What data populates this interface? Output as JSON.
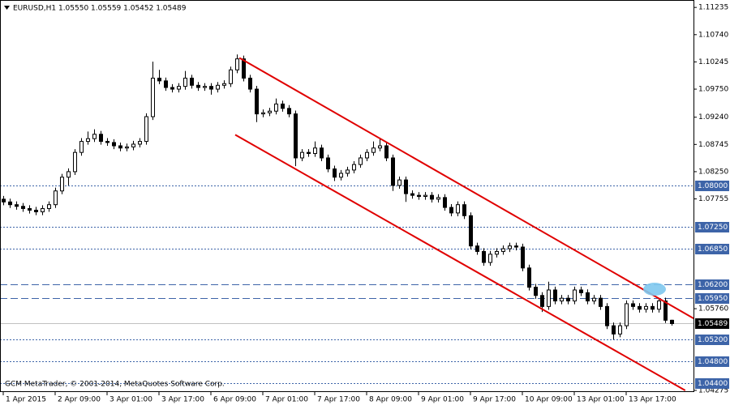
{
  "chart_data": {
    "type": "candlestick",
    "title": "EURUSD,H1  1.05550 1.05559 1.05452 1.05489",
    "annotation": "GCM MetaTrader, © 2001-2014, MetaQuotes Software Corp.",
    "bull_color": "#ffffff",
    "bear_color": "#000000",
    "wick_color": "#000000",
    "categories": [
      "1 Apr 2015",
      null,
      null,
      null,
      null,
      null,
      null,
      null,
      "2 Apr 09:00",
      null,
      null,
      null,
      null,
      null,
      null,
      null,
      "3 Apr 01:00",
      null,
      null,
      null,
      null,
      null,
      null,
      null,
      "3 Apr 17:00",
      null,
      null,
      null,
      null,
      null,
      null,
      null,
      "6 Apr 09:00",
      null,
      null,
      null,
      null,
      null,
      null,
      null,
      "7 Apr 01:00",
      null,
      null,
      null,
      null,
      null,
      null,
      null,
      "7 Apr 17:00",
      null,
      null,
      null,
      null,
      null,
      null,
      null,
      "8 Apr 09:00",
      null,
      null,
      null,
      null,
      null,
      null,
      null,
      "9 Apr 01:00",
      null,
      null,
      null,
      null,
      null,
      null,
      null,
      "9 Apr 17:00",
      null,
      null,
      null,
      null,
      null,
      null,
      null,
      "10 Apr 09:00",
      null,
      null,
      null,
      null,
      null,
      null,
      null,
      "13 Apr 01:00",
      null,
      null,
      null,
      null,
      null,
      null,
      null,
      "13 Apr 17:00",
      null,
      null,
      null,
      null,
      null,
      null,
      null
    ],
    "open": [
      1.0775,
      1.077,
      1.0765,
      1.0762,
      1.0758,
      1.0755,
      1.0752,
      1.0758,
      1.0765,
      1.079,
      1.0815,
      1.0825,
      1.086,
      1.088,
      1.0885,
      1.0893,
      1.088,
      1.0878,
      1.0872,
      1.0868,
      1.087,
      1.0875,
      1.088,
      1.0925,
      1.0995,
      1.099,
      1.0978,
      1.0975,
      1.098,
      1.0995,
      1.0982,
      1.0978,
      1.098,
      1.0975,
      1.0982,
      1.0985,
      1.101,
      1.103,
      1.0995,
      1.0975,
      1.093,
      1.0932,
      1.0935,
      1.0948,
      1.094,
      1.093,
      1.085,
      1.086,
      1.0858,
      1.0868,
      1.085,
      1.083,
      1.0815,
      1.0822,
      1.0828,
      1.0838,
      1.085,
      1.086,
      1.0868,
      1.0872,
      1.085,
      1.08,
      1.081,
      1.0785,
      1.0782,
      1.078,
      1.0782,
      1.0775,
      1.0778,
      1.076,
      1.075,
      1.0765,
      1.0745,
      1.069,
      1.068,
      1.066,
      1.0675,
      1.068,
      1.0685,
      1.069,
      1.0688,
      1.065,
      1.0615,
      1.06,
      1.058,
      1.061,
      1.059,
      1.0595,
      1.059,
      1.061,
      1.0605,
      1.059,
      1.0595,
      1.058,
      1.0545,
      1.053,
      1.0545,
      1.0585,
      1.058,
      1.0575,
      1.058,
      1.0575,
      1.059,
      1.0555
    ],
    "high": [
      1.0781,
      1.0776,
      1.0771,
      1.0768,
      1.0764,
      1.0761,
      1.0764,
      1.0771,
      1.0796,
      1.0821,
      1.0831,
      1.0866,
      1.0886,
      1.0898,
      1.0902,
      1.0899,
      1.0886,
      1.0884,
      1.0878,
      1.0876,
      1.0881,
      1.0886,
      1.0931,
      1.1025,
      1.101,
      1.0996,
      1.0984,
      1.0986,
      1.1008,
      1.1001,
      1.0988,
      1.0986,
      1.0986,
      1.0988,
      1.0991,
      1.1016,
      1.1038,
      1.1036,
      1.1001,
      1.0981,
      1.0938,
      1.0941,
      1.0958,
      1.0954,
      1.0946,
      1.0936,
      1.0866,
      1.0866,
      1.088,
      1.0874,
      1.0856,
      1.0836,
      1.0828,
      1.0834,
      1.0844,
      1.0856,
      1.0866,
      1.088,
      1.0885,
      1.0878,
      1.0856,
      1.0816,
      1.0816,
      1.0791,
      1.0788,
      1.0788,
      1.0788,
      1.0784,
      1.0784,
      1.0766,
      1.0771,
      1.0771,
      1.0751,
      1.0696,
      1.0686,
      1.0681,
      1.0686,
      1.0691,
      1.0696,
      1.0696,
      1.0694,
      1.0656,
      1.0621,
      1.0606,
      1.0625,
      1.0616,
      1.0601,
      1.0601,
      1.0616,
      1.0616,
      1.0611,
      1.0601,
      1.0601,
      1.0586,
      1.0551,
      1.0551,
      1.0591,
      1.0591,
      1.0586,
      1.0586,
      1.0586,
      1.0596,
      1.0596,
      1.05559
    ],
    "low": [
      1.0764,
      1.0759,
      1.0756,
      1.0752,
      1.0749,
      1.0746,
      1.0746,
      1.0752,
      1.0759,
      1.0784,
      1.08,
      1.0819,
      1.0854,
      1.0874,
      1.0879,
      1.0874,
      1.0872,
      1.0866,
      1.0862,
      1.0862,
      1.0864,
      1.0869,
      1.0874,
      1.0919,
      1.0984,
      1.0972,
      1.0969,
      1.0969,
      1.0974,
      1.0976,
      1.0972,
      1.0972,
      1.0965,
      1.0969,
      1.0976,
      1.0979,
      1.1004,
      1.0989,
      1.0969,
      1.0915,
      1.0924,
      1.0926,
      1.0929,
      1.0934,
      1.0924,
      1.0835,
      1.0844,
      1.0852,
      1.0852,
      1.0844,
      1.0824,
      1.0808,
      1.0809,
      1.0816,
      1.0822,
      1.0832,
      1.0844,
      1.0854,
      1.0862,
      1.0844,
      1.079,
      1.0794,
      1.077,
      1.0776,
      1.0774,
      1.0774,
      1.0769,
      1.0769,
      1.0754,
      1.0744,
      1.0744,
      1.0739,
      1.0684,
      1.0674,
      1.0654,
      1.0654,
      1.0669,
      1.0674,
      1.0679,
      1.0682,
      1.0644,
      1.0609,
      1.0594,
      1.057,
      1.0574,
      1.0584,
      1.0584,
      1.0584,
      1.0584,
      1.0599,
      1.0584,
      1.0584,
      1.0574,
      1.0539,
      1.052,
      1.0524,
      1.0539,
      1.0574,
      1.0569,
      1.0569,
      1.0569,
      1.0569,
      1.055,
      1.05452
    ],
    "close": [
      1.077,
      1.0765,
      1.0762,
      1.0758,
      1.0755,
      1.0752,
      1.0758,
      1.0765,
      1.079,
      1.0815,
      1.0825,
      1.086,
      1.088,
      1.0885,
      1.0893,
      1.088,
      1.0878,
      1.0872,
      1.0868,
      1.087,
      1.0875,
      1.088,
      1.0925,
      1.0995,
      1.099,
      1.0978,
      1.0975,
      1.098,
      1.0995,
      1.0982,
      1.0978,
      1.098,
      1.0975,
      1.0982,
      1.0985,
      1.101,
      1.103,
      1.0995,
      1.0975,
      1.093,
      1.0932,
      1.0935,
      1.0948,
      1.094,
      1.093,
      1.085,
      1.086,
      1.0858,
      1.0868,
      1.085,
      1.083,
      1.0815,
      1.0822,
      1.0828,
      1.0838,
      1.085,
      1.086,
      1.0868,
      1.0872,
      1.085,
      1.08,
      1.081,
      1.0785,
      1.0782,
      1.078,
      1.0782,
      1.0775,
      1.0778,
      1.076,
      1.075,
      1.0765,
      1.0745,
      1.069,
      1.068,
      1.066,
      1.0675,
      1.068,
      1.0685,
      1.069,
      1.0688,
      1.065,
      1.0615,
      1.06,
      1.058,
      1.061,
      1.059,
      1.0595,
      1.059,
      1.061,
      1.0605,
      1.059,
      1.0595,
      1.058,
      1.0545,
      1.053,
      1.0545,
      1.0585,
      1.058,
      1.0575,
      1.058,
      1.0575,
      1.059,
      1.0555,
      1.05489
    ],
    "ylim": [
      1.04245,
      1.1137
    ],
    "yticks": [
      {
        "value": 1.11235,
        "label": "1.11235"
      },
      {
        "value": 1.1074,
        "label": "1.10740"
      },
      {
        "value": 1.10245,
        "label": "1.10245"
      },
      {
        "value": 1.0975,
        "label": "1.09750"
      },
      {
        "value": 1.0924,
        "label": "1.09240"
      },
      {
        "value": 1.08745,
        "label": "1.08745"
      },
      {
        "value": 1.0825,
        "label": "1.08250"
      },
      {
        "value": 1.07755,
        "label": "1.07755"
      },
      {
        "value": 1.0576,
        "label": "1.05760"
      },
      {
        "value": 1.04275,
        "label": "1.04275"
      }
    ],
    "levels": [
      {
        "value": 1.08,
        "label": "1.08000",
        "style": "dotted",
        "color": "#3d64a8"
      },
      {
        "value": 1.0725,
        "label": "1.07250",
        "style": "dotted",
        "color": "#3d64a8"
      },
      {
        "value": 1.0685,
        "label": "1.06850",
        "style": "dotted",
        "color": "#3d64a8"
      },
      {
        "value": 1.062,
        "label": "1.06200",
        "style": "dashed",
        "color": "#3d64a8"
      },
      {
        "value": 1.0595,
        "label": "1.05950",
        "style": "dashed",
        "color": "#3d64a8"
      },
      {
        "value": 1.052,
        "label": "1.05200",
        "style": "dotted",
        "color": "#3d64a8"
      },
      {
        "value": 1.048,
        "label": "1.04800",
        "style": "dotted",
        "color": "#3d64a8"
      },
      {
        "value": 1.044,
        "label": "1.04400",
        "style": "dotted",
        "color": "#3d64a8"
      }
    ],
    "current_price": {
      "value": 1.05489,
      "label": "1.05489",
      "color": "#000000"
    },
    "trendlines": [
      {
        "color": "#e00000",
        "x": [
          36.4,
          106.4
        ],
        "y": [
          1.10318,
          1.05583
        ]
      },
      {
        "color": "#e00000",
        "x": [
          35.75,
          105.1
        ],
        "y": [
          1.0892,
          1.04275
        ]
      }
    ]
  }
}
